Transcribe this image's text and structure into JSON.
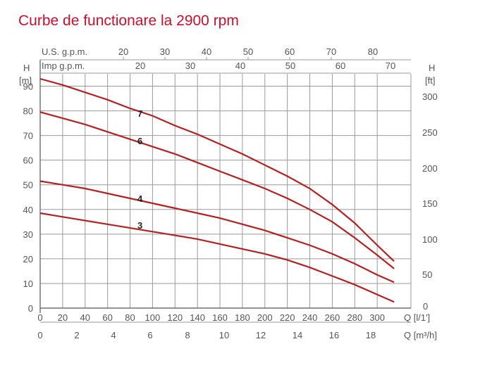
{
  "title": "Curbe de functionare la 2900 rpm",
  "colors": {
    "curve": "#b22222",
    "title": "#c8102e",
    "grid": "#9a9a9a",
    "text": "#555555"
  },
  "axes": {
    "us_gpm_label": "U.S. g.p.m.",
    "imp_gpm_label": "Imp g.p.m.",
    "left_h_label": "H",
    "left_unit": "[m]",
    "right_h_label": "H",
    "right_unit": "[ft]",
    "q_lmin_label": "Q [l/1']",
    "q_m3h_label": "Q [m³/h]"
  },
  "chart_data": {
    "type": "line",
    "title": "Curbe de functionare la 2900 rpm",
    "x": {
      "label": "Q [l/1']",
      "range": [
        0,
        330
      ],
      "ticks": [
        0,
        20,
        40,
        60,
        80,
        100,
        120,
        140,
        160,
        180,
        200,
        220,
        240,
        260,
        280,
        300
      ]
    },
    "x2": {
      "label": "Q [m³/h]",
      "ticks": [
        "0",
        "2",
        "4",
        "6",
        "8",
        "10",
        "12",
        "14",
        "16",
        "18"
      ]
    },
    "x_top1": {
      "label": "U.S. g.p.m.",
      "ticks": [
        "20",
        "30",
        "40",
        "50",
        "60",
        "70",
        "80"
      ]
    },
    "x_top2": {
      "label": "Imp g.p.m.",
      "ticks": [
        "20",
        "30",
        "40",
        "50",
        "60",
        "70"
      ]
    },
    "y": {
      "label": "H [m]",
      "range": [
        0,
        95
      ],
      "ticks": [
        0,
        10,
        20,
        30,
        40,
        50,
        60,
        70,
        80,
        90
      ]
    },
    "y2": {
      "label": "H [ft]",
      "ticks": [
        "50",
        "100",
        "150",
        "200",
        "250",
        "300"
      ]
    },
    "grid": true,
    "series": [
      {
        "name": "7",
        "x": [
          0,
          20,
          40,
          60,
          80,
          100,
          120,
          140,
          160,
          180,
          200,
          220,
          240,
          260,
          280,
          300,
          315
        ],
        "y": [
          93,
          90.5,
          87.5,
          84.5,
          81,
          78,
          74,
          70.5,
          66.5,
          62.5,
          58,
          53.5,
          48.5,
          42,
          34.5,
          25.5,
          19
        ]
      },
      {
        "name": "6",
        "x": [
          0,
          20,
          40,
          60,
          80,
          100,
          120,
          140,
          160,
          180,
          200,
          220,
          240,
          260,
          280,
          300,
          315
        ],
        "y": [
          79.5,
          77,
          74.5,
          71.5,
          68.5,
          65.5,
          62.5,
          59,
          55.5,
          52,
          48.5,
          44.5,
          40,
          35,
          28.5,
          21.5,
          16
        ]
      },
      {
        "name": "4",
        "x": [
          0,
          20,
          40,
          60,
          80,
          100,
          120,
          140,
          160,
          180,
          200,
          220,
          240,
          260,
          280,
          300,
          315
        ],
        "y": [
          51.5,
          50,
          48.5,
          46.5,
          44.5,
          42.5,
          40.5,
          38.5,
          36.5,
          34,
          31.5,
          28.5,
          25.5,
          22,
          18,
          13.5,
          10.5
        ]
      },
      {
        "name": "3",
        "x": [
          0,
          20,
          40,
          60,
          80,
          100,
          120,
          140,
          160,
          180,
          200,
          220,
          240,
          260,
          280,
          300,
          315
        ],
        "y": [
          38.5,
          37,
          35.5,
          34,
          32.5,
          31,
          29.5,
          28,
          26,
          24,
          22,
          19.5,
          16.5,
          13,
          9.5,
          5.5,
          2.5
        ]
      }
    ]
  }
}
